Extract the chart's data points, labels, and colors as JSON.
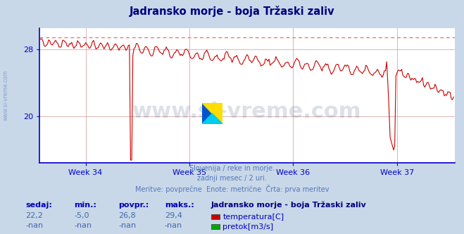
{
  "title": "Jadransko morje - boja Tržaski zaliv",
  "title_color": "#000080",
  "bg_color": "#c8d8e8",
  "plot_bg_color": "#ffffff",
  "grid_color": "#d8a8a8",
  "axis_color": "#0000cc",
  "subtitle_lines": [
    "Slovenija / reke in morje.",
    "zadnji mesec / 2 uri.",
    "Meritve: povprečne  Enote: metrične  Črta: prva meritev"
  ],
  "subtitle_color": "#5577bb",
  "xlabel_weeks": [
    "Week 34",
    "Week 35",
    "Week 36",
    "Week 37"
  ],
  "ylim": [
    14.5,
    30.5
  ],
  "yticks": [
    20,
    28
  ],
  "ytick_labels": [
    "20",
    "28"
  ],
  "max_line_value": 29.4,
  "max_line_color": "#ff6666",
  "line_color": "#cc0000",
  "line_width": 0.8,
  "legend_title": "Jadransko morje - boja Tržaski zaliv",
  "legend_title_color": "#000080",
  "legend_items": [
    {
      "label": "temperatura[C]",
      "color": "#cc0000"
    },
    {
      "label": "pretok[m3/s]",
      "color": "#00aa00"
    }
  ],
  "stats_headers": [
    "sedaj:",
    "min.:",
    "povpr.:",
    "maks.:"
  ],
  "stats_row1": [
    "22,2",
    "-5,0",
    "26,8",
    "29,4"
  ],
  "stats_row2": [
    "-nan",
    "-nan",
    "-nan",
    "-nan"
  ],
  "stats_color": "#0000bb",
  "stats_value_color": "#4466aa",
  "ylabel_text": "www.si-vreme.com",
  "ylabel_color": "#5577bb",
  "watermark_text": "www.si-vreme.com",
  "watermark_color": "#1a3a6a",
  "logo_colors": [
    "#0055cc",
    "#ffdd00",
    "#00ccee"
  ]
}
